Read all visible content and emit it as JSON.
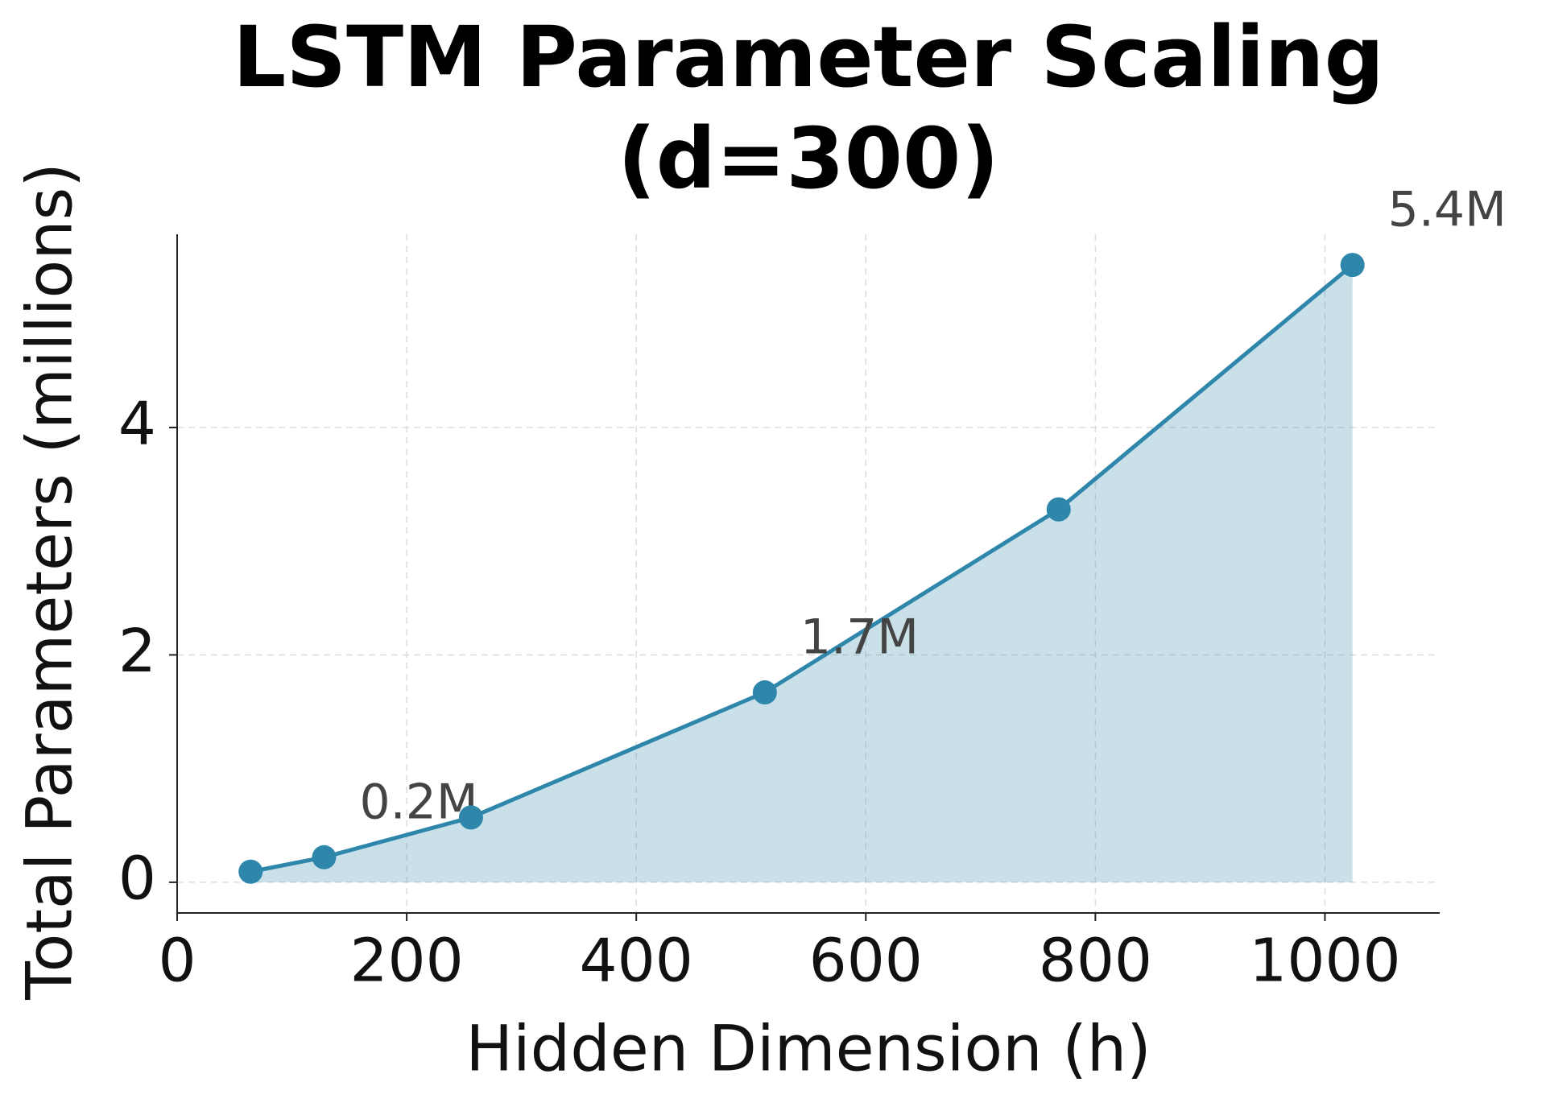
{
  "chart_data": {
    "type": "line",
    "title": "LSTM Parameter Scaling\n(d=300)",
    "x_label": "Hidden Dimension (h)",
    "y_label": "Total Parameters (millions)",
    "x": [
      64,
      128,
      256,
      512,
      768,
      1024
    ],
    "values": [
      0.093,
      0.22,
      0.57,
      1.67,
      3.28,
      5.43
    ],
    "value_labels": [
      null,
      "0.2M",
      null,
      "1.7M",
      null,
      "5.4M"
    ],
    "color": "#2e86ab",
    "fill": true,
    "xlim": [
      0,
      1100
    ],
    "xticks": [
      0,
      200,
      400,
      600,
      800,
      1000
    ],
    "ylim": [
      -0.27,
      5.7
    ],
    "yticks": [
      0,
      2,
      4
    ],
    "grid": true
  }
}
